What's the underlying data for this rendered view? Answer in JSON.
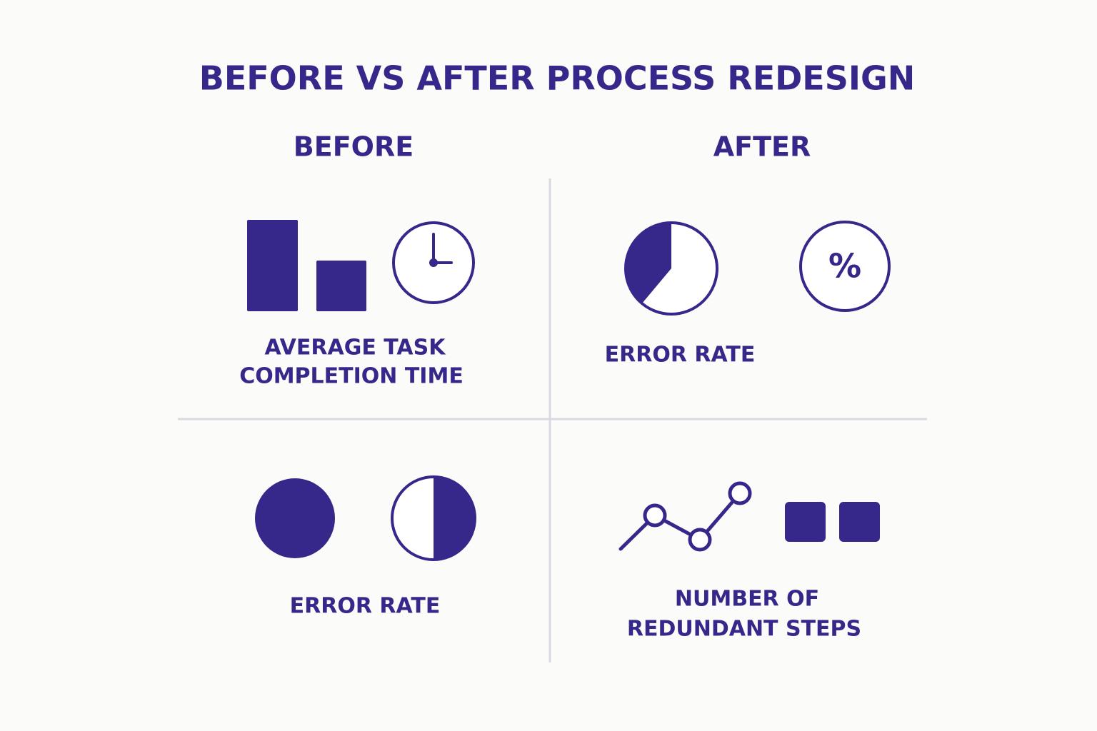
{
  "header": {
    "title": "BEFORE VS AFTER PROCESS REDESIGN"
  },
  "columns": [
    "BEFORE",
    "AFTER"
  ],
  "panels": [
    {
      "label": [
        "AVERAGE TASK",
        "COMPLETION TIME"
      ]
    },
    {
      "label": [
        "ERROR RATE"
      ],
      "icon_text": "%"
    },
    {
      "label": [
        "ERROR RATE"
      ]
    },
    {
      "label": [
        "NUMBER OF",
        "REDUNDANT STEPS"
      ]
    }
  ]
}
